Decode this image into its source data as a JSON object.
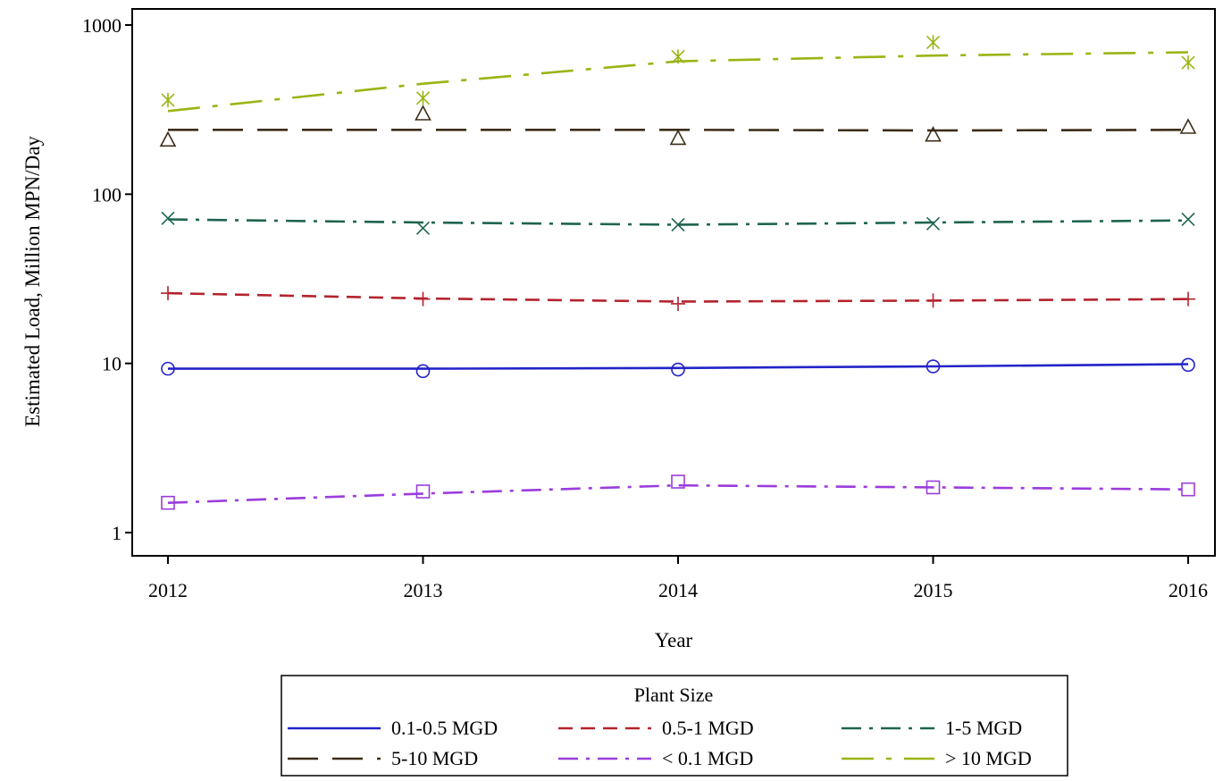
{
  "chart_data": {
    "type": "line",
    "xlabel": "Year",
    "ylabel": "Estimated Load, Million MPN/Day",
    "yscale": "log",
    "ylim": [
      0.8,
      1200
    ],
    "xlim": [
      2012,
      2016
    ],
    "x": [
      2012,
      2013,
      2014,
      2015,
      2016
    ],
    "xticks": [
      "2012",
      "2013",
      "2014",
      "2015",
      "2016"
    ],
    "yticks": [
      {
        "value": 1,
        "label": "1"
      },
      {
        "value": 10,
        "label": "10"
      },
      {
        "value": 100,
        "label": "100"
      },
      {
        "value": 1000,
        "label": "1000"
      }
    ],
    "grid": false,
    "legend": {
      "title": "Plant Size",
      "placement": "bottom"
    },
    "series": [
      {
        "name": "0.1-0.5 MGD",
        "color": "#2323c8",
        "dash": "solid",
        "marker": "circle",
        "points": [
          9.3,
          9.0,
          9.2,
          9.6,
          9.8
        ],
        "trend": [
          9.3,
          9.3,
          9.4,
          9.6,
          9.9
        ]
      },
      {
        "name": "0.5-1 MGD",
        "color": "#b4232d",
        "dash": "dash",
        "marker": "plus",
        "points": [
          26,
          24,
          22.5,
          23.5,
          24
        ],
        "trend": [
          26,
          24.2,
          23.2,
          23.5,
          24
        ]
      },
      {
        "name": "1-5 MGD",
        "color": "#1e6450",
        "dash": "dashdot",
        "marker": "x",
        "points": [
          72,
          63,
          66,
          67,
          71
        ],
        "trend": [
          71,
          68,
          66,
          68,
          70
        ]
      },
      {
        "name": "5-10 MGD",
        "color": "#3c2d19",
        "dash": "longdash",
        "marker": "triangle",
        "points": [
          210,
          300,
          215,
          225,
          250
        ],
        "trend": [
          240,
          240,
          240,
          238,
          240
        ]
      },
      {
        "name": "< 0.1 MGD",
        "color": "#9b3cdc",
        "dash": "dashdot",
        "marker": "square",
        "points": [
          1.5,
          1.75,
          2.0,
          1.85,
          1.8
        ],
        "trend": [
          1.5,
          1.7,
          1.9,
          1.85,
          1.8
        ]
      },
      {
        "name": "> 10 MGD",
        "color": "#9bb414",
        "dash": "longdashdot",
        "marker": "star",
        "points": [
          360,
          370,
          650,
          790,
          600
        ],
        "trend": [
          310,
          450,
          610,
          660,
          690
        ]
      }
    ]
  }
}
